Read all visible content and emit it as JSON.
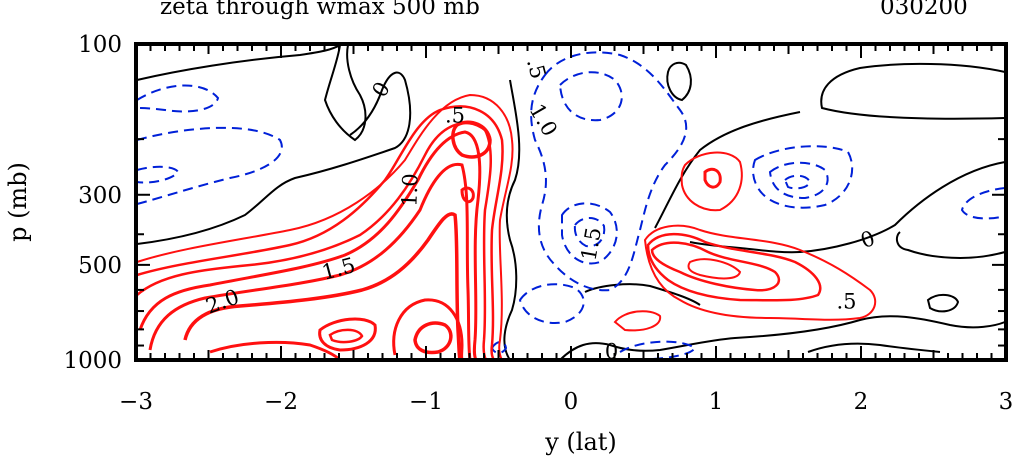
{
  "header": {
    "title": "zeta through wmax 500 mb",
    "stamp": "030200"
  },
  "chart_data": {
    "type": "contour",
    "xlabel": "y (lat)",
    "ylabel": "p (mb)",
    "xlim": [
      -3,
      3
    ],
    "ylim": [
      1000,
      100
    ],
    "xticks": [
      -3,
      -2,
      -1,
      0,
      1,
      2,
      3
    ],
    "xtick_labels": [
      "−3",
      "−2",
      "−1",
      "0",
      "1",
      "2",
      "3"
    ],
    "yticks": [
      100,
      300,
      500,
      1000
    ],
    "ytick_labels": [
      "100",
      "300",
      "500",
      "1000"
    ],
    "contour_labels": [
      {
        "text": "0",
        "x": -1.3,
        "p": 140,
        "rot": -60,
        "color": "#000000"
      },
      {
        "text": ".5",
        "x": -0.8,
        "p": 170,
        "rot": 0,
        "color": "#000000"
      },
      {
        "text": ".5",
        "x": -0.25,
        "p": 120,
        "rot": 75,
        "color": "#000000"
      },
      {
        "text": "1.0",
        "x": -0.2,
        "p": 175,
        "rot": 60,
        "color": "#000000"
      },
      {
        "text": "1.0",
        "x": -1.1,
        "p": 290,
        "rot": -88,
        "color": "#000000"
      },
      {
        "text": "1.5",
        "x": 0.15,
        "p": 430,
        "rot": -80,
        "color": "#000000"
      },
      {
        "text": "1.5",
        "x": -1.6,
        "p": 520,
        "rot": -15,
        "color": "#000000"
      },
      {
        "text": "2.0",
        "x": -2.4,
        "p": 660,
        "rot": -20,
        "color": "#000000"
      },
      {
        "text": "0",
        "x": 2.05,
        "p": 420,
        "rot": -20,
        "color": "#000000"
      },
      {
        "text": ".5",
        "x": 1.9,
        "p": 660,
        "rot": 0,
        "color": "#000000"
      },
      {
        "text": "0",
        "x": 0.28,
        "p": 950,
        "rot": 0,
        "color": "#000000"
      }
    ]
  }
}
